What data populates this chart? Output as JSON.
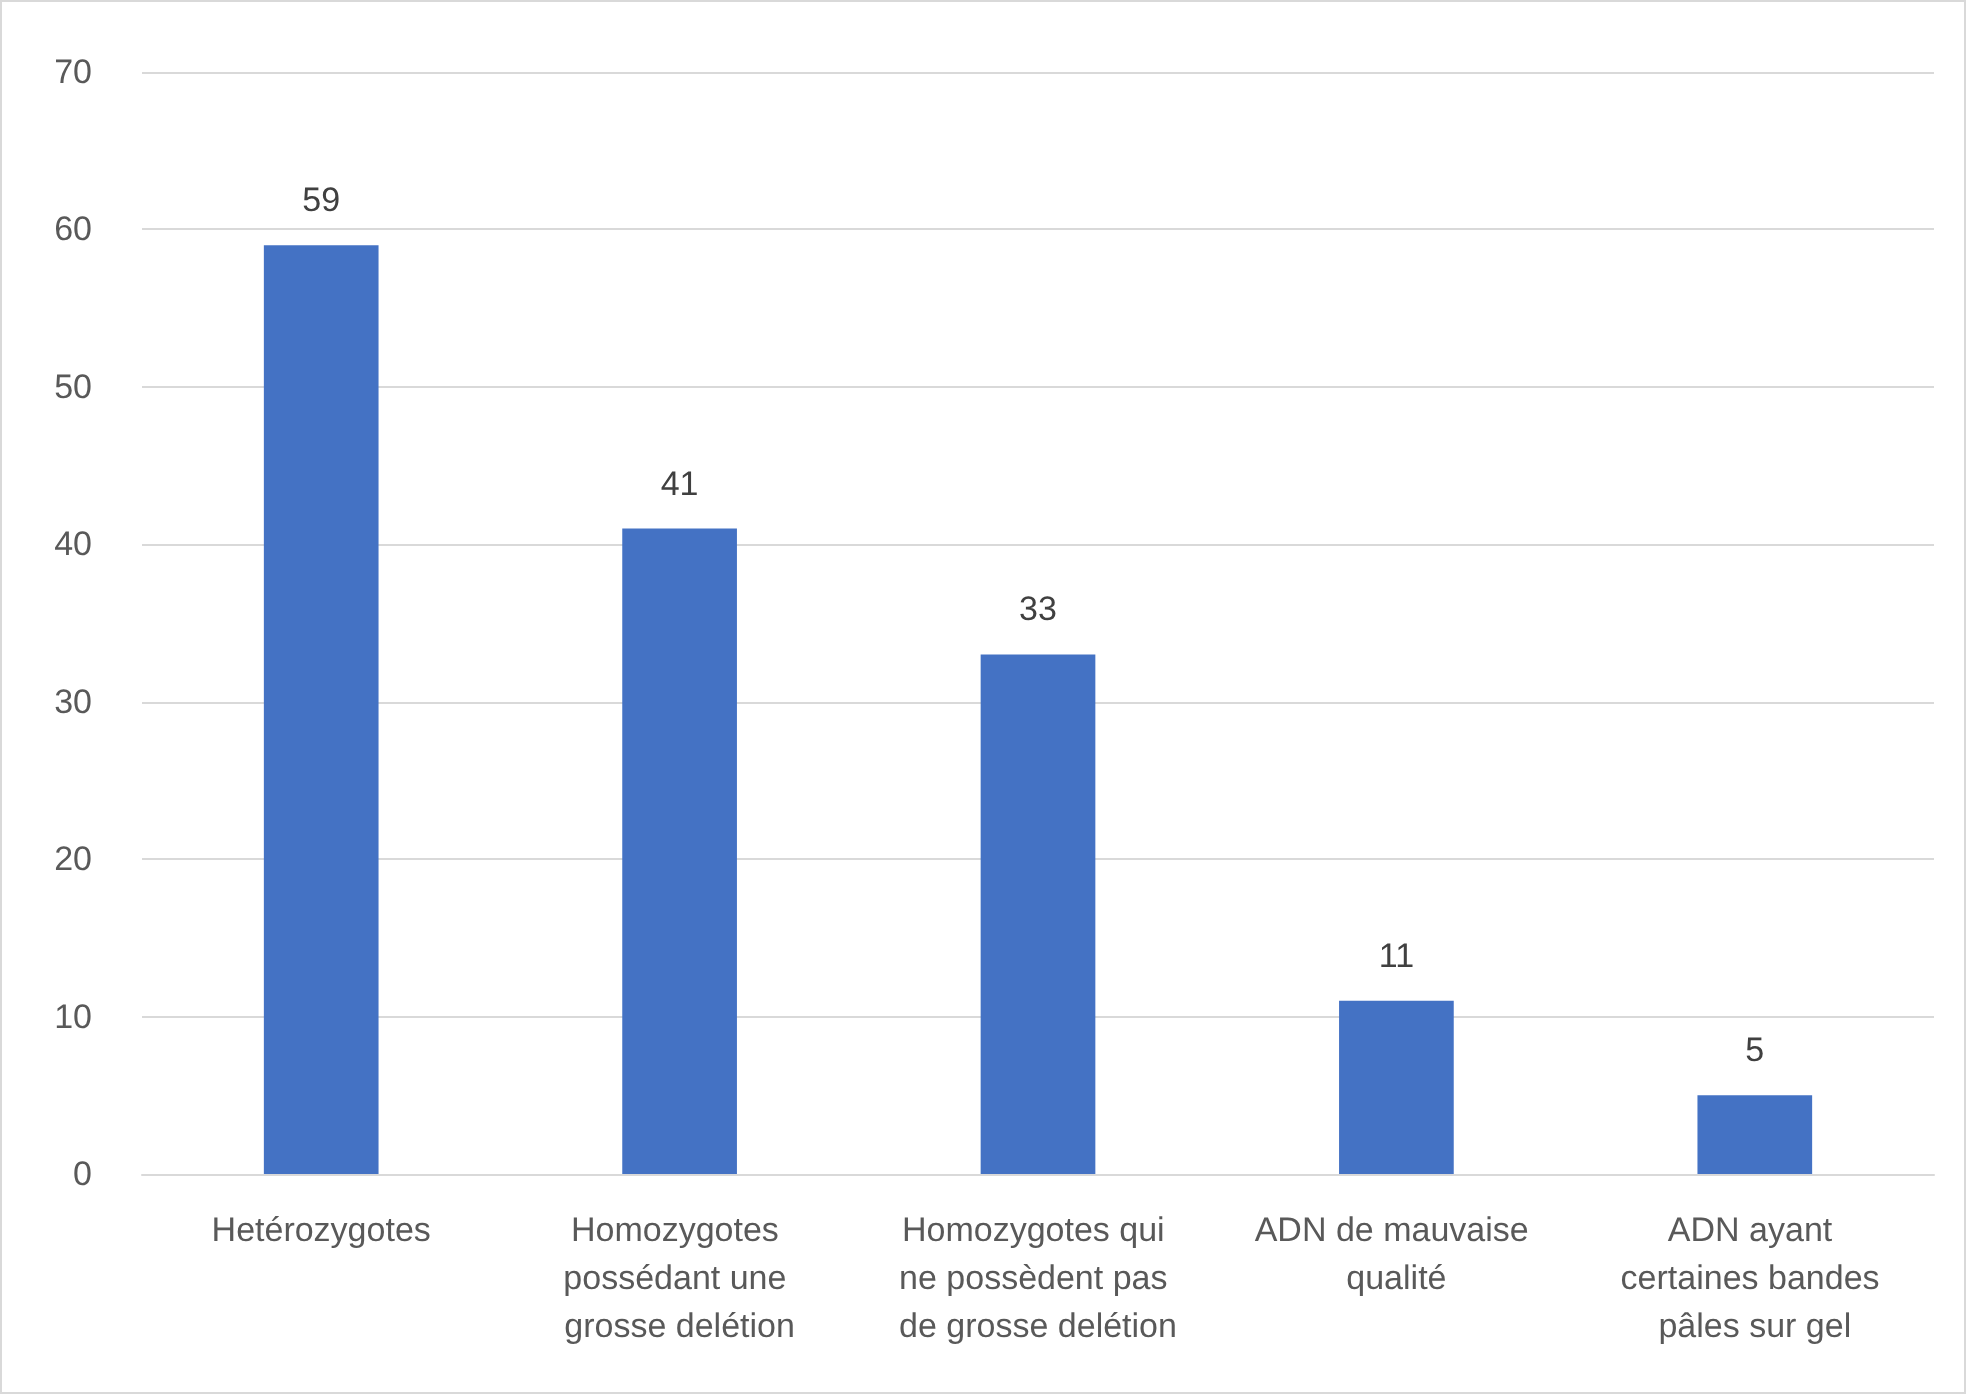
{
  "chart_data": {
    "type": "bar",
    "categories": [
      "Hetérozygotes",
      "Homozygotes possédant une grosse delétion",
      "Homozygotes qui ne possèdent pas de grosse delétion",
      "ADN de mauvaise qualité",
      "ADN ayant certaines bandes pâles sur gel"
    ],
    "values": [
      59,
      41,
      33,
      11,
      5
    ],
    "color": "#4472c4",
    "ylim": [
      0,
      70
    ],
    "yticks": [
      0,
      10,
      20,
      30,
      40,
      50,
      60,
      70
    ],
    "grid": "y",
    "data_labels": true
  }
}
